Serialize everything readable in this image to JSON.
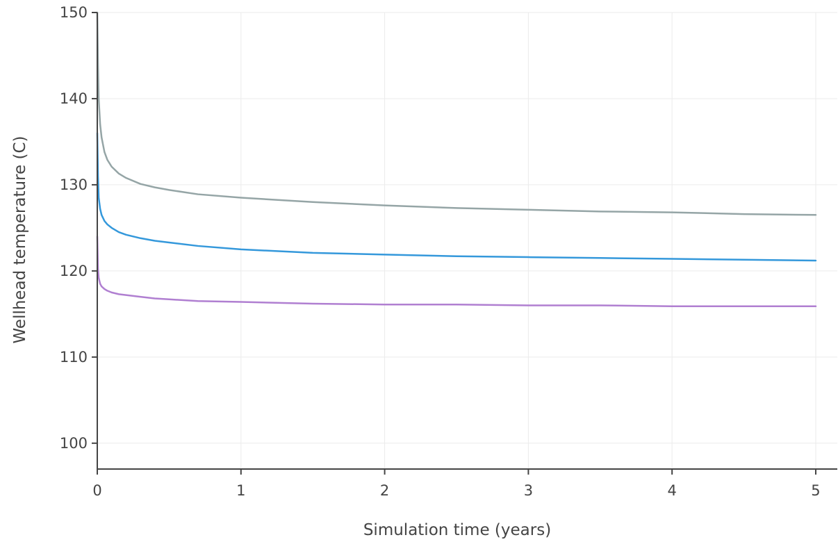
{
  "chart_data": {
    "type": "line",
    "title": "",
    "xlabel": "Simulation time (years)",
    "ylabel": "Wellhead temperature (C)",
    "xlim": [
      0,
      5.15
    ],
    "ylim": [
      97,
      150
    ],
    "x_ticks": [
      0,
      1,
      2,
      3,
      4,
      5
    ],
    "x_tick_labels": [
      "0",
      "1",
      "2",
      "3",
      "4",
      "5"
    ],
    "y_ticks": [
      100,
      110,
      120,
      130,
      140,
      150
    ],
    "y_tick_labels": [
      "100",
      "110",
      "120",
      "130",
      "140",
      "150"
    ],
    "grid": true,
    "legend": "none",
    "series": [
      {
        "color": "#95a5a6",
        "x": [
          0,
          0.005,
          0.01,
          0.02,
          0.03,
          0.05,
          0.07,
          0.1,
          0.15,
          0.2,
          0.3,
          0.4,
          0.5,
          0.7,
          1.0,
          1.5,
          2.0,
          2.5,
          3.0,
          3.5,
          4.0,
          4.5,
          5.0
        ],
        "y": [
          150,
          144,
          140,
          137,
          135.5,
          133.8,
          132.9,
          132.1,
          131.3,
          130.8,
          130.1,
          129.7,
          129.4,
          128.9,
          128.5,
          128.0,
          127.6,
          127.3,
          127.1,
          126.9,
          126.8,
          126.6,
          126.5
        ]
      },
      {
        "color": "#3498db",
        "x": [
          0,
          0.005,
          0.01,
          0.02,
          0.03,
          0.05,
          0.07,
          0.1,
          0.15,
          0.2,
          0.3,
          0.4,
          0.5,
          0.7,
          1.0,
          1.5,
          2.0,
          2.5,
          3.0,
          3.5,
          4.0,
          4.5,
          5.0
        ],
        "y": [
          136,
          131,
          128.5,
          127.2,
          126.5,
          125.8,
          125.4,
          125.0,
          124.5,
          124.2,
          123.8,
          123.5,
          123.3,
          122.9,
          122.5,
          122.1,
          121.9,
          121.7,
          121.6,
          121.5,
          121.4,
          121.3,
          121.2
        ]
      },
      {
        "color": "#b07fd1",
        "x": [
          0,
          0.005,
          0.01,
          0.02,
          0.03,
          0.05,
          0.07,
          0.1,
          0.15,
          0.2,
          0.3,
          0.4,
          0.5,
          0.7,
          1.0,
          1.5,
          2.0,
          2.5,
          3.0,
          3.5,
          4.0,
          4.5,
          5.0
        ],
        "y": [
          124,
          120.2,
          119.2,
          118.5,
          118.2,
          117.9,
          117.7,
          117.5,
          117.3,
          117.2,
          117.0,
          116.8,
          116.7,
          116.5,
          116.4,
          116.2,
          116.1,
          116.1,
          116.0,
          116.0,
          115.9,
          115.9,
          115.9
        ]
      }
    ]
  }
}
